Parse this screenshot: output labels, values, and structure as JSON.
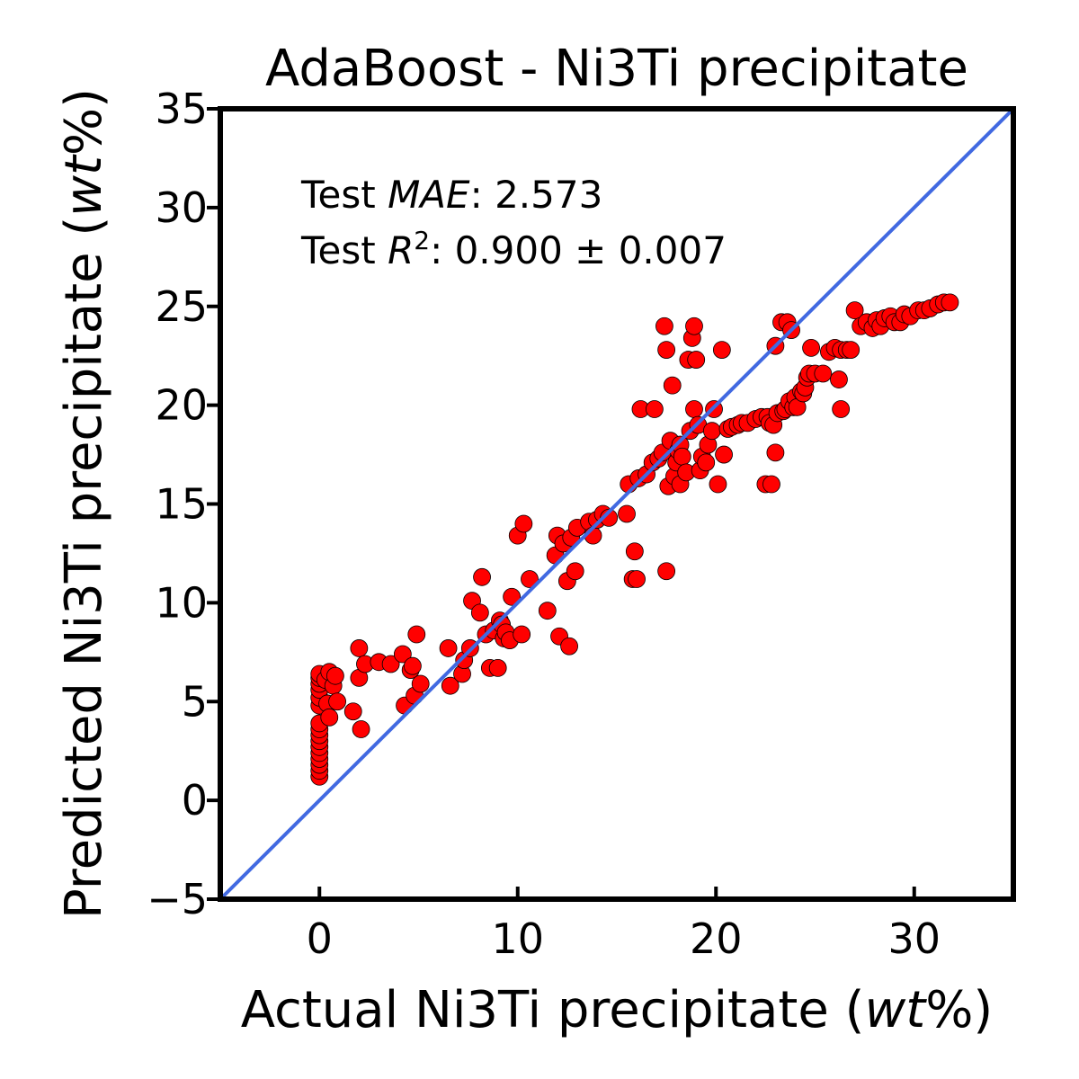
{
  "chart_data": {
    "type": "scatter",
    "title": "AdaBoost - Ni3Ti precipitate",
    "xlabel": {
      "prefix": "Actual Ni3Ti precipitate (",
      "unit": "wt",
      "suffix": "%)"
    },
    "ylabel": {
      "prefix": "Predicted Ni3Ti precipitate (",
      "unit": "wt",
      "suffix": "%)"
    },
    "xlim": [
      -5,
      35
    ],
    "ylim": [
      -5,
      35
    ],
    "x_ticks": [
      0,
      10,
      20,
      30
    ],
    "y_ticks": [
      -5,
      0,
      5,
      10,
      15,
      20,
      25,
      30,
      35
    ],
    "x_tick_labels": [
      "0",
      "10",
      "20",
      "30"
    ],
    "y_tick_labels": [
      "−5",
      "0",
      "5",
      "10",
      "15",
      "20",
      "25",
      "30",
      "35"
    ],
    "grid": false,
    "annotations": {
      "mae": {
        "prefix": "Test ",
        "metric": "MAE",
        "value": ": 2.573"
      },
      "r2": {
        "prefix": "Test ",
        "metric": "R",
        "sup": "2",
        "value": ": 0.900 ± 0.007"
      }
    },
    "identity_line": {
      "from": [
        -5,
        -5
      ],
      "to": [
        35,
        35
      ],
      "color": "#4169E1"
    },
    "series": [
      {
        "marker_color": "#ff0000",
        "edge_color": "#000000",
        "points": [
          [
            0,
            1.2
          ],
          [
            0,
            1.5
          ],
          [
            0,
            1.8
          ],
          [
            0,
            2.1
          ],
          [
            0,
            2.4
          ],
          [
            0,
            2.7
          ],
          [
            0,
            3.0
          ],
          [
            0,
            3.3
          ],
          [
            0,
            3.6
          ],
          [
            0,
            3.9
          ],
          [
            0,
            4.8
          ],
          [
            0,
            5.2
          ],
          [
            0,
            5.6
          ],
          [
            0,
            5.9
          ],
          [
            0,
            6.2
          ],
          [
            0,
            6.4
          ],
          [
            0.3,
            6.1
          ],
          [
            0.5,
            6.5
          ],
          [
            0.4,
            4.9
          ],
          [
            0.5,
            4.2
          ],
          [
            0.7,
            5.8
          ],
          [
            0.8,
            6.3
          ],
          [
            0.9,
            5.0
          ],
          [
            1.7,
            4.5
          ],
          [
            2.1,
            3.6
          ],
          [
            2.0,
            6.2
          ],
          [
            2.0,
            7.7
          ],
          [
            2.3,
            6.9
          ],
          [
            3.0,
            7.0
          ],
          [
            3.6,
            6.9
          ],
          [
            4.2,
            7.4
          ],
          [
            4.3,
            4.8
          ],
          [
            4.6,
            6.6
          ],
          [
            4.7,
            6.8
          ],
          [
            4.8,
            5.3
          ],
          [
            4.9,
            8.4
          ],
          [
            5.1,
            5.9
          ],
          [
            6.5,
            7.7
          ],
          [
            6.6,
            5.8
          ],
          [
            7.2,
            6.4
          ],
          [
            7.3,
            7.1
          ],
          [
            7.6,
            7.7
          ],
          [
            7.7,
            10.1
          ],
          [
            8.1,
            9.5
          ],
          [
            8.2,
            11.3
          ],
          [
            8.4,
            8.4
          ],
          [
            8.6,
            6.7
          ],
          [
            8.8,
            8.6
          ],
          [
            9.0,
            6.7
          ],
          [
            9.1,
            9.1
          ],
          [
            9.2,
            8.9
          ],
          [
            9.3,
            8.2
          ],
          [
            9.4,
            8.5
          ],
          [
            9.6,
            8.1
          ],
          [
            9.7,
            10.3
          ],
          [
            10.0,
            13.4
          ],
          [
            10.2,
            8.4
          ],
          [
            10.3,
            14.0
          ],
          [
            10.6,
            11.2
          ],
          [
            11.5,
            9.6
          ],
          [
            11.9,
            12.4
          ],
          [
            12.0,
            13.4
          ],
          [
            12.1,
            8.3
          ],
          [
            12.3,
            13.0
          ],
          [
            12.5,
            11.1
          ],
          [
            12.6,
            7.8
          ],
          [
            12.7,
            13.3
          ],
          [
            12.9,
            11.6
          ],
          [
            13.0,
            13.8
          ],
          [
            13.6,
            14.1
          ],
          [
            13.8,
            13.4
          ],
          [
            14.0,
            14.2
          ],
          [
            14.3,
            14.5
          ],
          [
            14.6,
            14.3
          ],
          [
            15.5,
            14.5
          ],
          [
            15.6,
            16.0
          ],
          [
            15.8,
            11.2
          ],
          [
            16.0,
            11.2
          ],
          [
            15.9,
            12.6
          ],
          [
            16.1,
            16.3
          ],
          [
            16.2,
            19.8
          ],
          [
            16.5,
            16.5
          ],
          [
            16.8,
            17.1
          ],
          [
            16.9,
            19.8
          ],
          [
            17.1,
            17.3
          ],
          [
            17.3,
            17.6
          ],
          [
            17.4,
            24.0
          ],
          [
            17.5,
            22.8
          ],
          [
            17.5,
            11.6
          ],
          [
            17.6,
            15.9
          ],
          [
            17.7,
            18.2
          ],
          [
            17.8,
            21.0
          ],
          [
            17.9,
            16.4
          ],
          [
            18.0,
            17.1
          ],
          [
            18.1,
            17.7
          ],
          [
            18.2,
            18.0
          ],
          [
            18.2,
            16.0
          ],
          [
            18.3,
            17.4
          ],
          [
            18.5,
            16.6
          ],
          [
            18.6,
            22.3
          ],
          [
            18.7,
            18.7
          ],
          [
            18.8,
            23.4
          ],
          [
            18.9,
            24.0
          ],
          [
            18.9,
            19.8
          ],
          [
            19.0,
            22.3
          ],
          [
            19.1,
            19.0
          ],
          [
            19.2,
            16.7
          ],
          [
            19.3,
            17.4
          ],
          [
            19.5,
            17.1
          ],
          [
            19.6,
            18.0
          ],
          [
            19.8,
            18.7
          ],
          [
            19.9,
            19.8
          ],
          [
            20.1,
            16.0
          ],
          [
            20.3,
            22.8
          ],
          [
            20.4,
            17.5
          ],
          [
            20.6,
            18.8
          ],
          [
            20.8,
            18.9
          ],
          [
            21.1,
            19.0
          ],
          [
            21.3,
            19.1
          ],
          [
            21.6,
            19.1
          ],
          [
            22.0,
            19.3
          ],
          [
            22.3,
            19.4
          ],
          [
            22.5,
            16.0
          ],
          [
            22.6,
            19.4
          ],
          [
            22.8,
            16.0
          ],
          [
            22.7,
            19.1
          ],
          [
            22.9,
            19.0
          ],
          [
            23.0,
            17.6
          ],
          [
            23.0,
            23.0
          ],
          [
            23.1,
            19.6
          ],
          [
            23.3,
            24.2
          ],
          [
            23.4,
            19.7
          ],
          [
            23.5,
            19.8
          ],
          [
            23.6,
            24.2
          ],
          [
            23.7,
            20.2
          ],
          [
            23.8,
            23.8
          ],
          [
            23.9,
            19.9
          ],
          [
            24.0,
            20.4
          ],
          [
            24.1,
            19.9
          ],
          [
            24.3,
            20.7
          ],
          [
            24.4,
            20.6
          ],
          [
            24.5,
            20.9
          ],
          [
            24.6,
            21.4
          ],
          [
            24.7,
            21.6
          ],
          [
            24.8,
            22.9
          ],
          [
            25.0,
            21.6
          ],
          [
            25.4,
            21.6
          ],
          [
            25.7,
            22.7
          ],
          [
            26.0,
            22.9
          ],
          [
            26.2,
            21.3
          ],
          [
            26.3,
            22.8
          ],
          [
            26.3,
            19.8
          ],
          [
            26.6,
            22.8
          ],
          [
            26.8,
            22.8
          ],
          [
            27.0,
            24.8
          ],
          [
            27.3,
            24.0
          ],
          [
            27.6,
            24.2
          ],
          [
            27.9,
            23.9
          ],
          [
            28.1,
            24.3
          ],
          [
            28.3,
            24.0
          ],
          [
            28.5,
            24.4
          ],
          [
            28.8,
            24.5
          ],
          [
            29.0,
            24.2
          ],
          [
            29.3,
            24.2
          ],
          [
            29.5,
            24.6
          ],
          [
            29.8,
            24.5
          ],
          [
            30.2,
            24.8
          ],
          [
            30.5,
            24.8
          ],
          [
            30.8,
            24.9
          ],
          [
            31.2,
            25.1
          ],
          [
            31.5,
            25.2
          ],
          [
            31.8,
            25.2
          ]
        ]
      }
    ]
  }
}
